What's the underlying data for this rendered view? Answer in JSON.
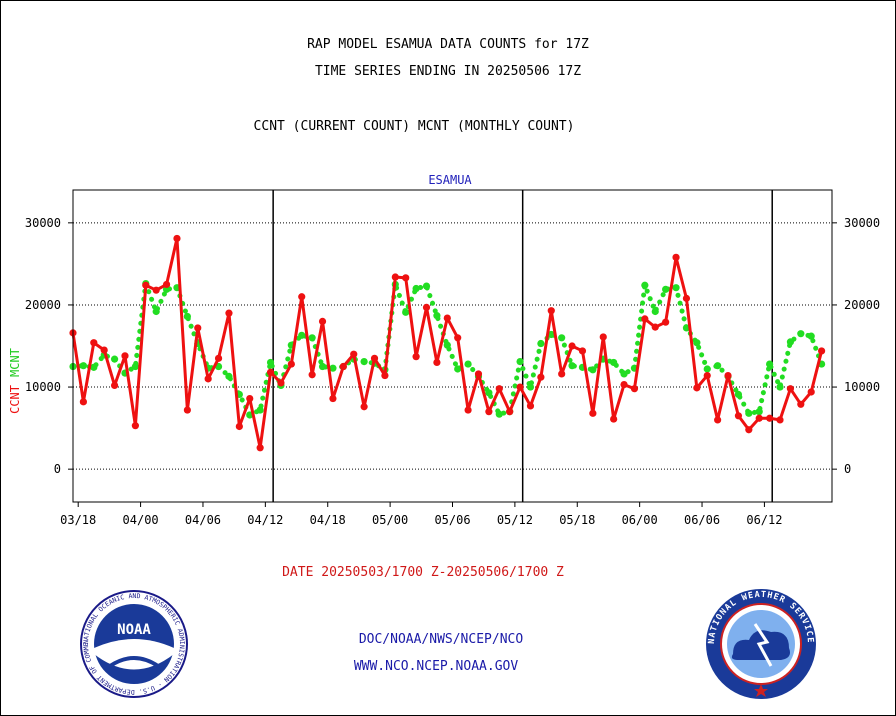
{
  "header": {
    "title_line1": "RAP MODEL ESAMUA DATA COUNTS for 17Z",
    "title_line2": "TIME SERIES ENDING IN 20250506 17Z",
    "title_line3": "CCNT (CURRENT COUNT) MCNT (MONTHLY COUNT)"
  },
  "footer": {
    "date_range": "DATE 20250503/1700 Z-20250506/1700 Z",
    "credit_line1": "DOC/NOAA/NWS/NCEP/NCO",
    "credit_line2": "WWW.NCO.NCEP.NOAA.GOV"
  },
  "logos": {
    "left": "noaa-logo",
    "left_text": "NOAA",
    "left_ring_text": "NATIONAL OCEANIC AND ATMOSPHERIC ADMINISTRATION · U.S. DEPARTMENT OF COMMERCE",
    "right": "nws-logo",
    "right_ring_text": "NATIONAL WEATHER SERVICE"
  },
  "chart_data": {
    "type": "line",
    "title": "ESAMUA",
    "ylabel_ccnt": "CCNT",
    "ylabel_mcnt": "MCNT",
    "ylim": [
      -4000,
      34000
    ],
    "yticks": [
      0,
      10000,
      20000,
      30000
    ],
    "xlim": [
      0,
      73
    ],
    "xticks": [
      {
        "x": 0.5,
        "label": "03/18"
      },
      {
        "x": 6.5,
        "label": "04/00"
      },
      {
        "x": 12.5,
        "label": "04/06"
      },
      {
        "x": 18.5,
        "label": "04/12"
      },
      {
        "x": 24.5,
        "label": "04/18"
      },
      {
        "x": 30.5,
        "label": "05/00"
      },
      {
        "x": 36.5,
        "label": "05/06"
      },
      {
        "x": 42.5,
        "label": "05/12"
      },
      {
        "x": 48.5,
        "label": "05/18"
      },
      {
        "x": 54.5,
        "label": "06/00"
      },
      {
        "x": 60.5,
        "label": "06/06"
      },
      {
        "x": 66.5,
        "label": "06/12"
      }
    ],
    "day_dividers": [
      19.25,
      43.25,
      67.25
    ],
    "grid": "horizontal",
    "series": [
      {
        "name": "CCNT",
        "color": "#ee1111",
        "style": "solid",
        "values": [
          16600,
          8200,
          15400,
          14500,
          10200,
          13800,
          5300,
          22400,
          21800,
          22500,
          28100,
          7200,
          17200,
          11000,
          13500,
          19000,
          5200,
          8600,
          2600,
          11800,
          10500,
          12800,
          21000,
          11500,
          18000,
          8600,
          12500,
          14000,
          7600,
          13500,
          11400,
          23400,
          23300,
          13700,
          19700,
          13000,
          18400,
          16000,
          7200,
          11600,
          7000,
          9800,
          7000,
          10000,
          7700,
          11200,
          19300,
          11600,
          15000,
          14400,
          6800,
          16100,
          6100,
          10300,
          9800,
          18300,
          17300,
          17900,
          25800,
          20800,
          9900,
          11400,
          6000,
          11400,
          6500,
          4800,
          6200,
          6200,
          6000,
          9800,
          7900,
          9400,
          14400
        ]
      },
      {
        "name": "MCNT",
        "color": "#22dd22",
        "style": "dotted",
        "values": [
          12500,
          12600,
          12400,
          13900,
          13400,
          11700,
          12500,
          22600,
          19200,
          21900,
          22100,
          18600,
          15300,
          12300,
          12500,
          11300,
          9100,
          6600,
          7200,
          13000,
          10200,
          15100,
          16300,
          16000,
          12500,
          12300,
          12500,
          13400,
          13100,
          12900,
          12100,
          22500,
          19100,
          22000,
          22300,
          18700,
          15100,
          12200,
          12800,
          11300,
          9300,
          6700,
          7000,
          13100,
          10000,
          15300,
          16400,
          16000,
          12600,
          12400,
          12100,
          13400,
          13000,
          11600,
          12300,
          22400,
          19200,
          21900,
          22100,
          17200,
          15400,
          12200,
          12600,
          11300,
          9100,
          6800,
          7000,
          12800,
          10000,
          15500,
          16500,
          16200,
          12800
        ]
      }
    ]
  }
}
